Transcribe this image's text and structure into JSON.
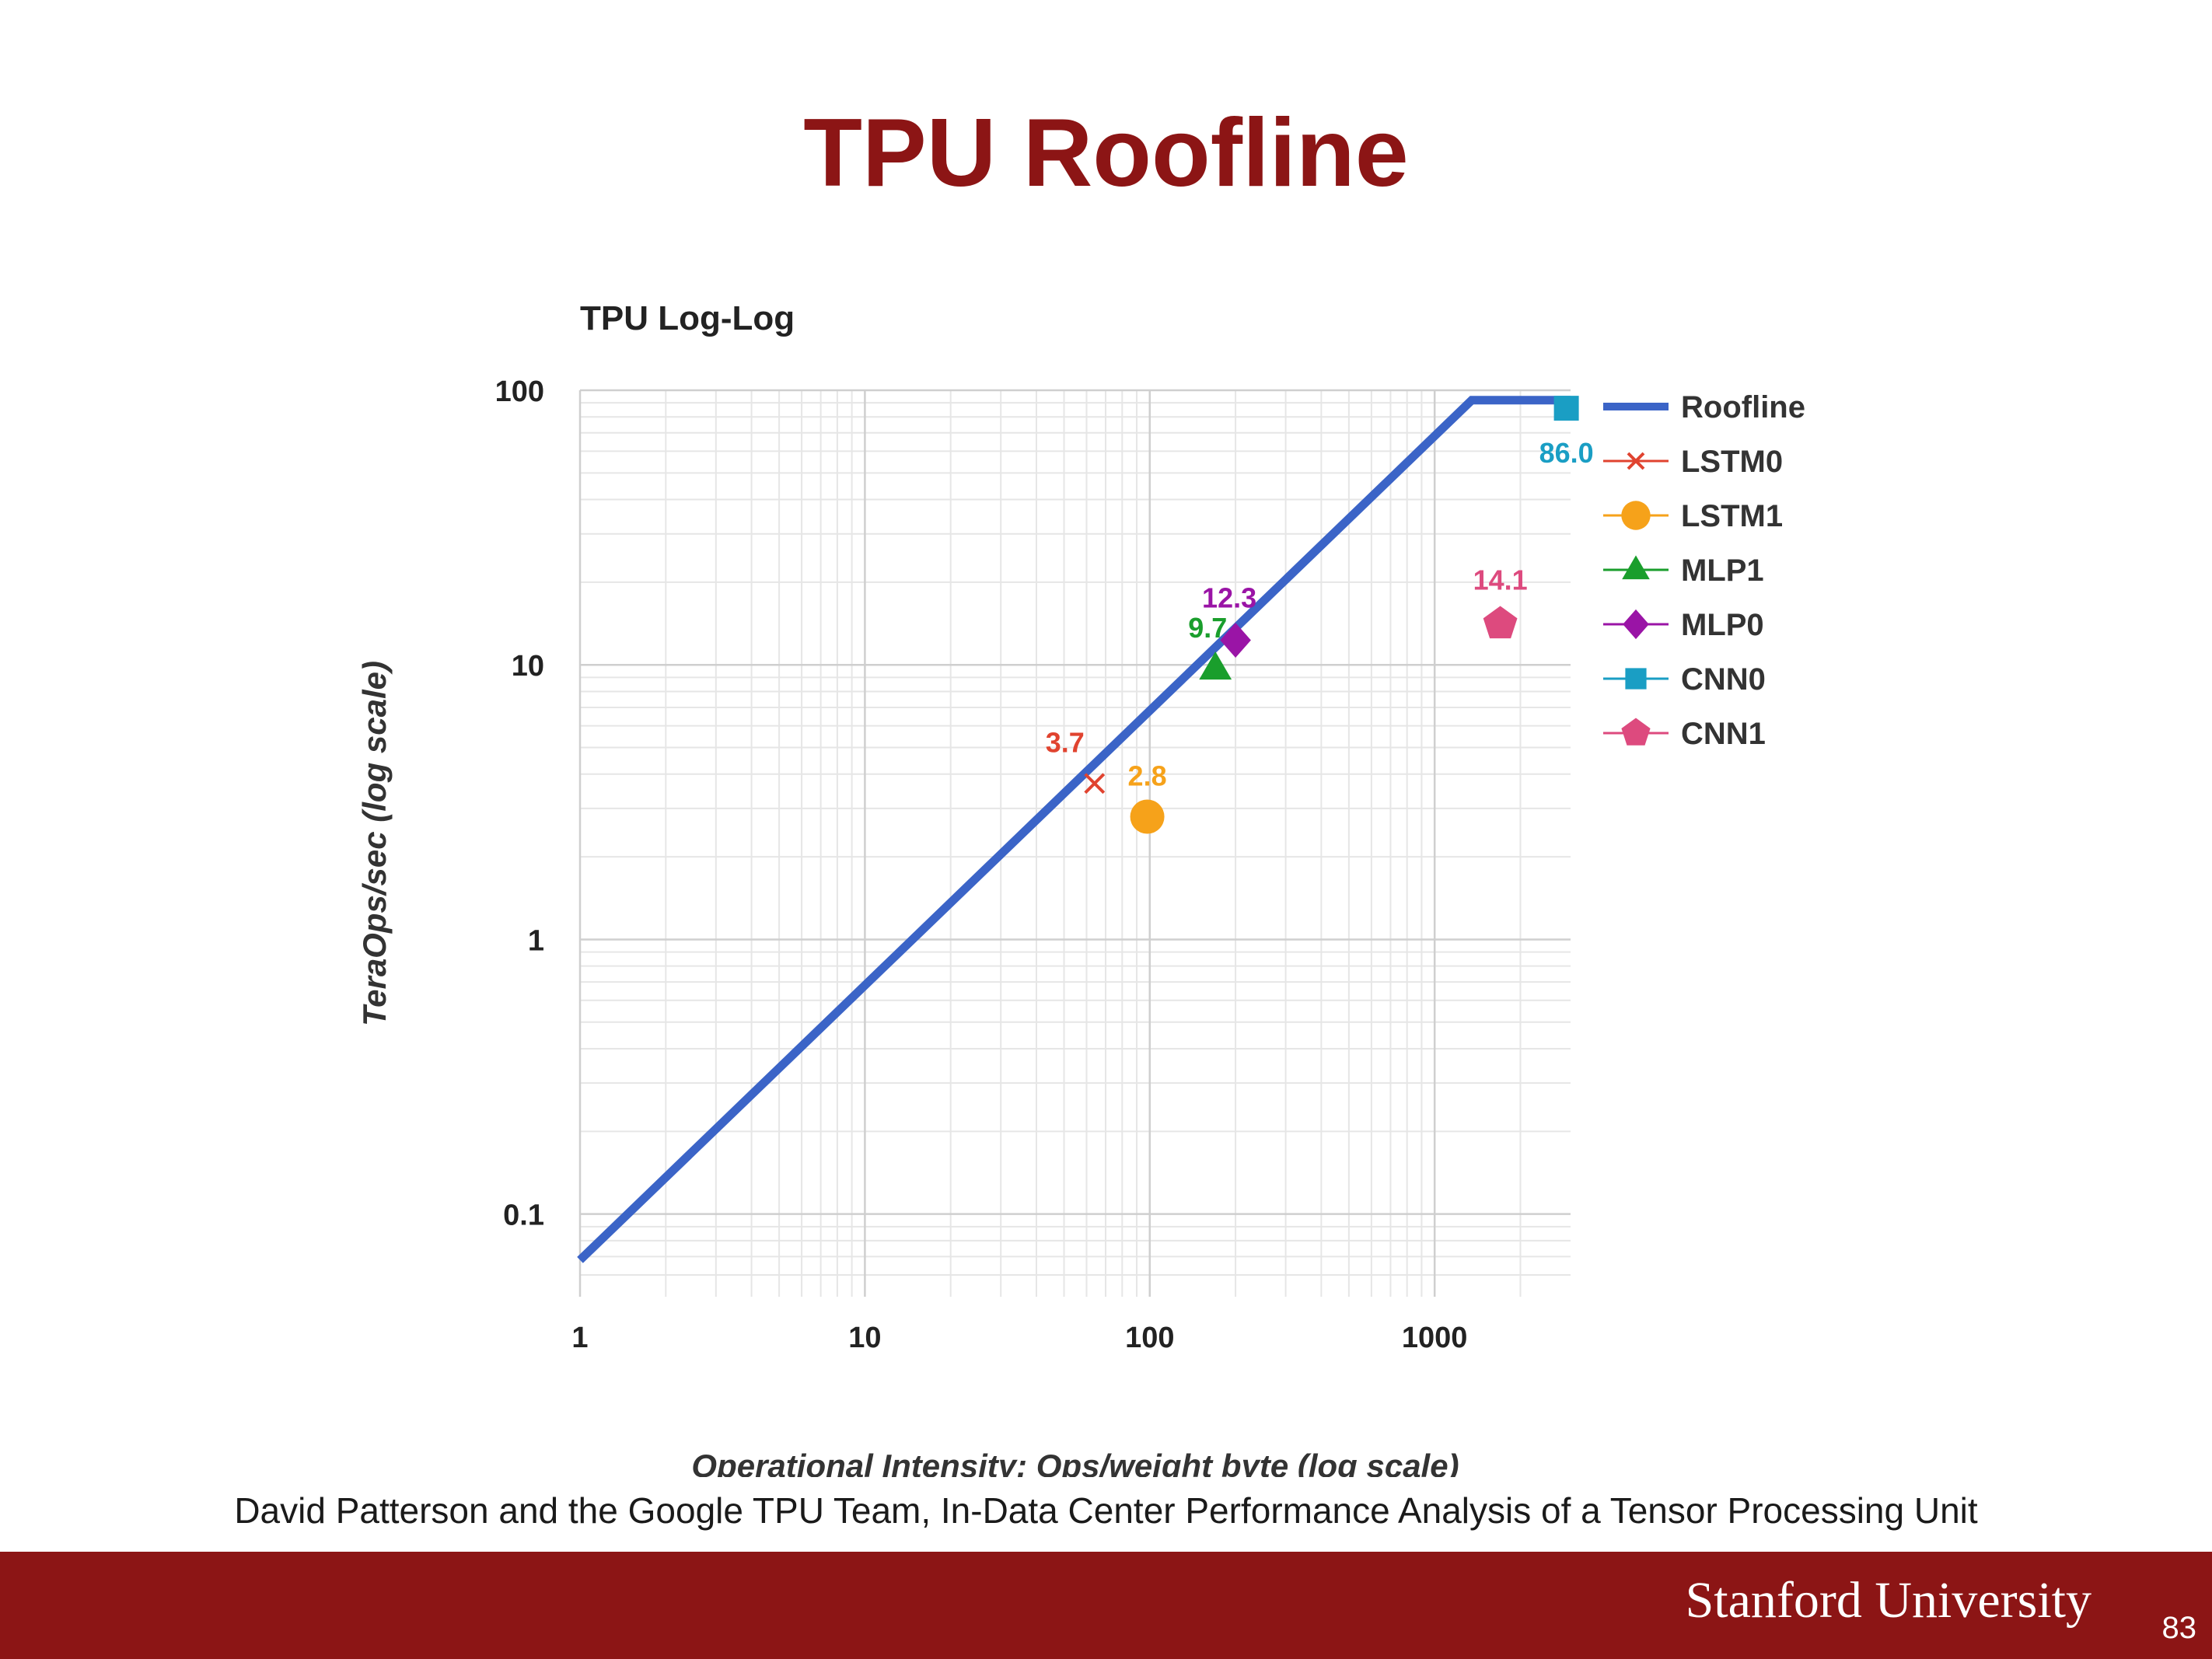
{
  "slide": {
    "title": "TPU Roofline",
    "citation": "David Patterson and the Google TPU Team, In-Data Center Performance Analysis of a Tensor Processing Unit",
    "footer": {
      "brand": "Stanford University",
      "page_number": "83"
    }
  },
  "colors": {
    "title": "#8c1515",
    "footer_bar": "#8c1515",
    "roofline": "#3b64c7",
    "grid_major": "#cfcfcf",
    "grid_minor": "#e6e6e6"
  },
  "chart_data": {
    "type": "scatter",
    "title": "TPU Log-Log",
    "xlabel": "Operational Intensity: Ops/weight byte (log scale)",
    "ylabel": "TeraOps/sec (log scale)",
    "x_scale": "log",
    "y_scale": "log",
    "xlim": [
      1,
      3000
    ],
    "ylim": [
      0.05,
      100
    ],
    "x_ticks": [
      1,
      10,
      100,
      1000
    ],
    "x_tick_labels": [
      "1",
      "10",
      "100",
      "1000"
    ],
    "y_ticks": [
      0.1,
      1,
      10,
      100
    ],
    "y_tick_labels": [
      "0.1",
      "1",
      "10",
      "100"
    ],
    "grid": true,
    "legend_position": "right",
    "roofline": {
      "name": "Roofline",
      "color": "#3b64c7",
      "x": [
        1,
        1350,
        3000
      ],
      "y": [
        0.068,
        92,
        92
      ]
    },
    "series": [
      {
        "name": "LSTM0",
        "marker": "x",
        "color": "#e0432f",
        "x": 64,
        "y": 3.7,
        "label": "3.7"
      },
      {
        "name": "LSTM1",
        "marker": "circle",
        "color": "#f6a21a",
        "x": 98,
        "y": 2.8,
        "label": "2.8"
      },
      {
        "name": "MLP1",
        "marker": "triangle",
        "color": "#1a9e2c",
        "x": 170,
        "y": 9.7,
        "label": "9.7"
      },
      {
        "name": "MLP0",
        "marker": "diamond",
        "color": "#9a14a6",
        "x": 200,
        "y": 12.3,
        "label": "12.3"
      },
      {
        "name": "CNN0",
        "marker": "square",
        "color": "#1a9ec4",
        "x": 2900,
        "y": 86.0,
        "label": "86.0"
      },
      {
        "name": "CNN1",
        "marker": "pentagon",
        "color": "#dd4a7e",
        "x": 1700,
        "y": 14.1,
        "label": "14.1"
      }
    ]
  }
}
